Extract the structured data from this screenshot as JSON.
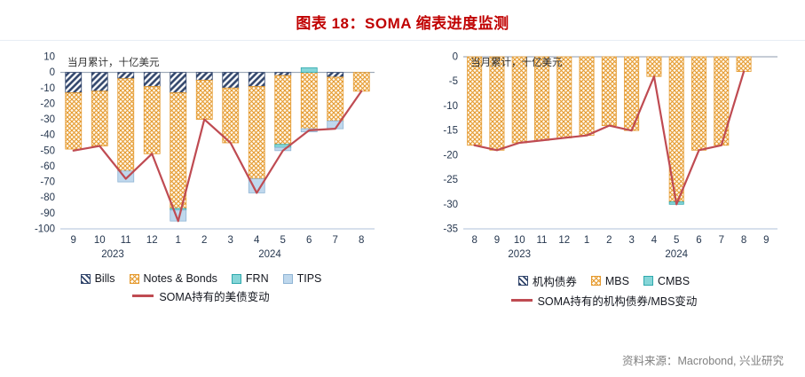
{
  "header": {
    "title": "图表 18：SOMA 缩表进度监测"
  },
  "source_note": "资料来源：Macrobond, 兴业研究",
  "colors": {
    "title_red": "#C00000",
    "line_red": "#BF4B52",
    "bills_navy": "#31456B",
    "notes_orange": "#E59A2F",
    "frn_cyan": "#2FA9AD",
    "tips_blue": "#8FB4D4",
    "axis_text": "#26374F",
    "source_gray": "#808080"
  },
  "chart_data": [
    {
      "type": "bar",
      "subtype": "stacked-bars-with-line",
      "annotation": "当月累计，十亿美元",
      "categories": [
        "9",
        "10",
        "11",
        "12",
        "1",
        "2",
        "3",
        "4",
        "5",
        "6",
        "7",
        "8"
      ],
      "year_groups": [
        {
          "label": "2023",
          "from": 0,
          "to": 3
        },
        {
          "label": "2024",
          "from": 4,
          "to": 11
        }
      ],
      "ylim": [
        -100,
        10
      ],
      "yticks": [
        10,
        0,
        -10,
        -20,
        -30,
        -40,
        -50,
        -60,
        -70,
        -80,
        -90,
        -100
      ],
      "grid": false,
      "legend_position": "bottom",
      "bar_series": [
        {
          "name": "Bills",
          "fill_type": "diagonal",
          "color": "#31456B",
          "fill": "#ffffff",
          "values": [
            -13,
            -12,
            -4,
            -9,
            -13,
            -5,
            -10,
            -9,
            -2,
            0,
            -3,
            0
          ]
        },
        {
          "name": "Notes & Bonds",
          "fill_type": "crosshatch",
          "color": "#E59A2F",
          "fill": "#FFF9EE",
          "values": [
            -36,
            -35,
            -59,
            -43,
            -74,
            -25,
            -35,
            -59,
            -44,
            -36,
            -28,
            -12
          ]
        },
        {
          "name": "FRN",
          "fill_type": "solid",
          "color": "#2FA9AD",
          "fill": "#86D6D8",
          "values": [
            0,
            0,
            0,
            0,
            -1,
            0,
            0,
            0,
            -2,
            3,
            0,
            0
          ]
        },
        {
          "name": "TIPS",
          "fill_type": "solid",
          "color": "#8FB4D4",
          "fill": "#BFD8ED",
          "values": [
            0,
            0,
            -7,
            0,
            -7,
            0,
            0,
            -9,
            -2,
            -2,
            -5,
            0
          ]
        }
      ],
      "line_series": {
        "name": "SOMA持有的美债变动",
        "color": "#BF4B52",
        "values": [
          -50,
          -47,
          -68,
          -52,
          -95,
          -30,
          -45,
          -77,
          -50,
          -37,
          -36,
          -12
        ]
      }
    },
    {
      "type": "bar",
      "subtype": "stacked-bars-with-line",
      "annotation": "当月累计，十亿美元",
      "categories": [
        "8",
        "9",
        "10",
        "11",
        "12",
        "1",
        "2",
        "3",
        "4",
        "5",
        "6",
        "7",
        "8",
        "9"
      ],
      "year_groups": [
        {
          "label": "2023",
          "from": 0,
          "to": 4
        },
        {
          "label": "2024",
          "from": 5,
          "to": 13
        }
      ],
      "ylim": [
        -35,
        0
      ],
      "yticks": [
        0,
        -5,
        -10,
        -15,
        -20,
        -25,
        -30,
        -35
      ],
      "grid": false,
      "legend_position": "bottom",
      "bar_series": [
        {
          "name": "机构债券",
          "fill_type": "diagonal",
          "color": "#31456B",
          "fill": "#ffffff",
          "values": [
            0,
            0,
            0,
            0,
            0,
            0,
            0,
            0,
            0,
            0,
            0,
            0,
            0,
            null
          ]
        },
        {
          "name": "MBS",
          "fill_type": "crosshatch",
          "color": "#E59A2F",
          "fill": "#FFF9EE",
          "values": [
            -18,
            -19,
            -17.5,
            -17,
            -16.5,
            -16,
            -14,
            -15,
            -4,
            -29.5,
            -19,
            -18,
            -3,
            null
          ]
        },
        {
          "name": "CMBS",
          "fill_type": "solid",
          "color": "#2FA9AD",
          "fill": "#86D6D8",
          "values": [
            0,
            0,
            0,
            0,
            0,
            0,
            0,
            0,
            0,
            -0.5,
            0,
            0,
            0,
            null
          ]
        }
      ],
      "line_series": {
        "name": "SOMA持有的机构债券/MBS变动",
        "color": "#BF4B52",
        "values": [
          -18,
          -19,
          -17.5,
          -17,
          -16.5,
          -16,
          -14,
          -15,
          -4,
          -30,
          -19,
          -18,
          -3,
          null
        ]
      }
    }
  ]
}
